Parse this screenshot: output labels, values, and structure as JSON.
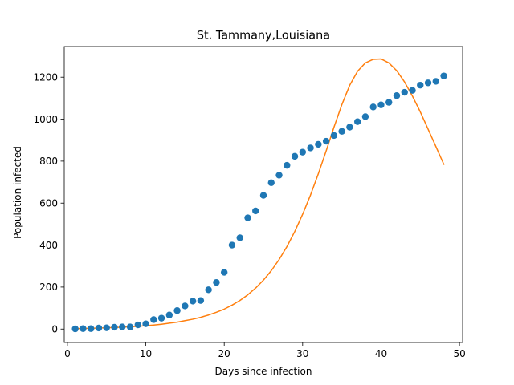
{
  "chart_data": {
    "type": "scatter",
    "title": "St. Tammany,Louisiana",
    "xlabel": "Days since infection",
    "ylabel": "Population infected",
    "xlim": [
      -0.4,
      50.4
    ],
    "ylim": [
      -64,
      1346
    ],
    "xticks": [
      0,
      10,
      20,
      30,
      40,
      50
    ],
    "yticks": [
      0,
      200,
      400,
      600,
      800,
      1000,
      1200
    ],
    "grid": false,
    "legend": "none",
    "series": [
      {
        "kind": "scatter",
        "color": "#1f77b4",
        "x": [
          1,
          2,
          3,
          4,
          5,
          6,
          7,
          8,
          9,
          10,
          11,
          12,
          13,
          14,
          15,
          16,
          17,
          18,
          19,
          20,
          21,
          22,
          23,
          24,
          25,
          26,
          27,
          28,
          29,
          30,
          31,
          32,
          33,
          34,
          35,
          36,
          37,
          38,
          39,
          40,
          41,
          42,
          43,
          44,
          45,
          46,
          47,
          48
        ],
        "y": [
          1,
          2,
          2,
          5,
          6,
          9,
          10,
          10,
          20,
          25,
          45,
          52,
          67,
          88,
          110,
          133,
          136,
          187,
          222,
          270,
          400,
          435,
          530,
          563,
          637,
          697,
          733,
          780,
          823,
          843,
          863,
          880,
          895,
          922,
          942,
          962,
          988,
          1012,
          1058,
          1068,
          1080,
          1112,
          1128,
          1137,
          1162,
          1173,
          1180,
          1206
        ]
      },
      {
        "kind": "line",
        "color": "#ff7f0e",
        "x": [
          1,
          2,
          3,
          4,
          5,
          6,
          7,
          8,
          9,
          10,
          11,
          12,
          13,
          14,
          15,
          16,
          17,
          18,
          19,
          20,
          21,
          22,
          23,
          24,
          25,
          26,
          27,
          28,
          29,
          30,
          31,
          32,
          33,
          34,
          35,
          36,
          37,
          38,
          39,
          40,
          41,
          42,
          43,
          44,
          45,
          46,
          47,
          48
        ],
        "y": [
          2,
          3,
          4,
          5,
          6,
          7,
          9,
          11,
          13,
          16,
          19,
          23,
          28,
          33,
          40,
          47,
          56,
          67,
          80,
          95,
          114,
          136,
          163,
          195,
          233,
          278,
          331,
          393,
          465,
          547,
          638,
          740,
          849,
          962,
          1069,
          1161,
          1228,
          1268,
          1285,
          1287,
          1268,
          1231,
          1177,
          1110,
          1035,
          952,
          869,
          785
        ]
      }
    ]
  }
}
